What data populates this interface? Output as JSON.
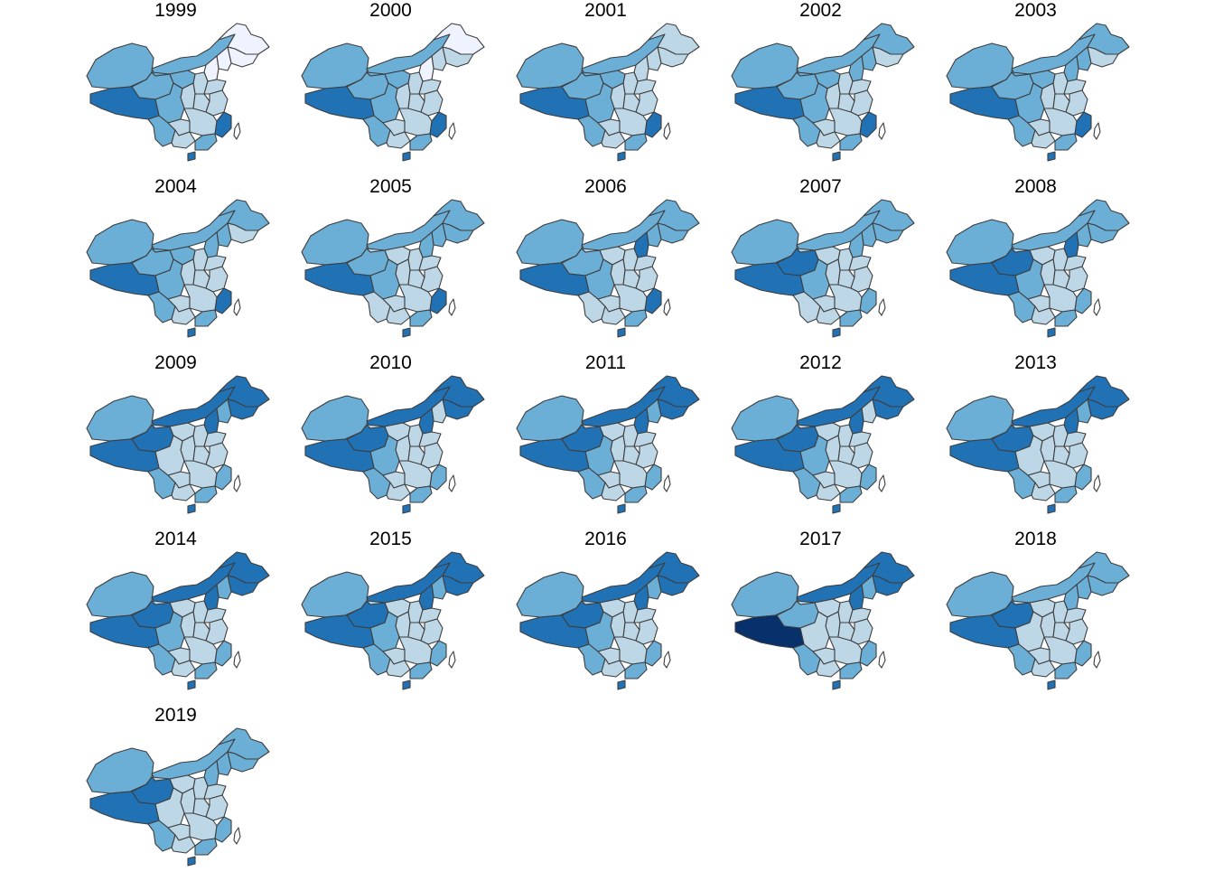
{
  "figure": {
    "palette": [
      "#eff3ff",
      "#bdd7e7",
      "#6baed6",
      "#2171b5",
      "#08306b"
    ],
    "border_color": "#3d3d3d"
  },
  "panels": [
    {
      "year": "1999",
      "classes": [
        2,
        2,
        2,
        0,
        0,
        0,
        0,
        1,
        2,
        1,
        1,
        1,
        1,
        2,
        3,
        2,
        3,
        1,
        1,
        1,
        2,
        3
      ]
    },
    {
      "year": "2000",
      "classes": [
        2,
        2,
        2,
        0,
        1,
        1,
        0,
        1,
        2,
        1,
        1,
        1,
        1,
        2,
        3,
        2,
        3,
        1,
        1,
        1,
        2,
        3
      ]
    },
    {
      "year": "2001",
      "classes": [
        2,
        2,
        2,
        1,
        1,
        1,
        1,
        1,
        2,
        1,
        1,
        1,
        1,
        2,
        3,
        2,
        3,
        1,
        1,
        1,
        2,
        3
      ]
    },
    {
      "year": "2002",
      "classes": [
        2,
        2,
        2,
        2,
        1,
        2,
        2,
        1,
        2,
        1,
        1,
        1,
        1,
        2,
        3,
        2,
        3,
        1,
        1,
        1,
        2,
        3
      ]
    },
    {
      "year": "2003",
      "classes": [
        2,
        2,
        2,
        2,
        1,
        2,
        2,
        1,
        2,
        1,
        1,
        1,
        1,
        2,
        3,
        2,
        3,
        1,
        1,
        1,
        2,
        3
      ]
    },
    {
      "year": "2004",
      "classes": [
        2,
        2,
        2,
        2,
        1,
        2,
        2,
        1,
        2,
        1,
        1,
        1,
        1,
        2,
        3,
        2,
        3,
        1,
        1,
        1,
        2,
        3
      ]
    },
    {
      "year": "2005",
      "classes": [
        2,
        2,
        2,
        2,
        2,
        2,
        2,
        1,
        1,
        1,
        1,
        1,
        1,
        2,
        3,
        1,
        3,
        1,
        1,
        1,
        2,
        3
      ]
    },
    {
      "year": "2006",
      "classes": [
        2,
        2,
        2,
        2,
        2,
        2,
        3,
        1,
        1,
        1,
        1,
        1,
        1,
        2,
        3,
        1,
        3,
        1,
        1,
        1,
        2,
        3
      ]
    },
    {
      "year": "2007",
      "classes": [
        2,
        2,
        3,
        2,
        2,
        2,
        2,
        1,
        1,
        1,
        1,
        1,
        1,
        2,
        3,
        1,
        2,
        1,
        1,
        1,
        2,
        3
      ]
    },
    {
      "year": "2008",
      "classes": [
        2,
        2,
        3,
        2,
        2,
        2,
        3,
        1,
        1,
        1,
        1,
        1,
        1,
        2,
        3,
        2,
        2,
        1,
        1,
        1,
        2,
        3
      ]
    },
    {
      "year": "2009",
      "classes": [
        2,
        3,
        3,
        3,
        3,
        2,
        3,
        1,
        1,
        1,
        1,
        1,
        1,
        1,
        3,
        2,
        2,
        1,
        1,
        1,
        2,
        3
      ]
    },
    {
      "year": "2010",
      "classes": [
        2,
        3,
        3,
        3,
        3,
        1,
        3,
        1,
        1,
        1,
        1,
        1,
        1,
        2,
        3,
        2,
        2,
        1,
        1,
        1,
        2,
        3
      ]
    },
    {
      "year": "2011",
      "classes": [
        2,
        3,
        3,
        3,
        3,
        2,
        3,
        1,
        1,
        1,
        1,
        1,
        1,
        2,
        3,
        2,
        2,
        1,
        1,
        1,
        2,
        3
      ]
    },
    {
      "year": "2012",
      "classes": [
        2,
        3,
        3,
        3,
        3,
        1,
        3,
        1,
        1,
        1,
        1,
        1,
        1,
        2,
        3,
        2,
        2,
        1,
        1,
        1,
        2,
        3
      ]
    },
    {
      "year": "2013",
      "classes": [
        2,
        3,
        3,
        3,
        3,
        2,
        3,
        1,
        1,
        1,
        1,
        1,
        1,
        1,
        3,
        2,
        2,
        1,
        1,
        1,
        2,
        3
      ]
    },
    {
      "year": "2014",
      "classes": [
        2,
        3,
        3,
        3,
        3,
        2,
        3,
        1,
        1,
        1,
        1,
        1,
        1,
        2,
        3,
        2,
        2,
        1,
        1,
        1,
        2,
        3
      ]
    },
    {
      "year": "2015",
      "classes": [
        2,
        3,
        3,
        3,
        3,
        2,
        3,
        1,
        1,
        1,
        1,
        1,
        1,
        2,
        3,
        2,
        2,
        1,
        1,
        1,
        2,
        3
      ]
    },
    {
      "year": "2016",
      "classes": [
        2,
        3,
        3,
        3,
        3,
        2,
        3,
        1,
        1,
        1,
        1,
        1,
        1,
        2,
        3,
        2,
        2,
        1,
        1,
        1,
        2,
        3
      ]
    },
    {
      "year": "2017",
      "classes": [
        2,
        3,
        2,
        3,
        3,
        2,
        3,
        1,
        1,
        1,
        1,
        1,
        1,
        1,
        4,
        2,
        2,
        1,
        1,
        1,
        2,
        3
      ]
    },
    {
      "year": "2018",
      "classes": [
        2,
        2,
        3,
        2,
        2,
        2,
        2,
        1,
        1,
        1,
        1,
        1,
        1,
        1,
        3,
        2,
        2,
        1,
        1,
        1,
        2,
        3
      ]
    },
    {
      "year": "2019",
      "classes": [
        2,
        2,
        3,
        2,
        2,
        2,
        2,
        1,
        1,
        1,
        1,
        1,
        1,
        1,
        3,
        2,
        2,
        1,
        1,
        1,
        2,
        3
      ]
    }
  ]
}
